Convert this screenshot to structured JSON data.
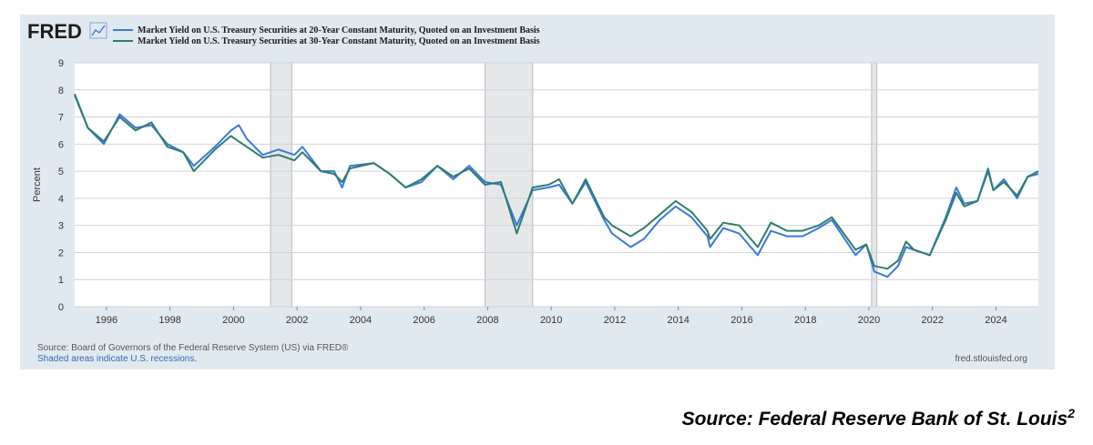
{
  "chart_data": {
    "type": "line",
    "brand": "FRED",
    "ylabel": "Percent",
    "ylim": [
      0,
      9
    ],
    "yticks": [
      "0",
      "1",
      "2",
      "3",
      "4",
      "5",
      "6",
      "7",
      "8",
      "9"
    ],
    "xlim": [
      "1995-01-01",
      "2025-05-01"
    ],
    "xticks": [
      "1996",
      "1998",
      "2000",
      "2002",
      "2004",
      "2006",
      "2008",
      "2010",
      "2012",
      "2014",
      "2016",
      "2018",
      "2020",
      "2022",
      "2024"
    ],
    "grid": true,
    "legend_position": "top-left",
    "recessions": [
      {
        "start": "2001-03-01",
        "end": "2001-11-01"
      },
      {
        "start": "2007-12-01",
        "end": "2009-06-01"
      },
      {
        "start": "2020-02-01",
        "end": "2020-04-01"
      }
    ],
    "series": [
      {
        "name": "Market Yield on U.S. Treasury Securities at 20-Year Constant Maturity, Quoted on an Investment Basis",
        "color": "#3a78e0",
        "points": [
          [
            "1995-01",
            7.8
          ],
          [
            "1995-06",
            6.6
          ],
          [
            "1995-12",
            6.0
          ],
          [
            "1996-06",
            7.1
          ],
          [
            "1996-12",
            6.6
          ],
          [
            "1997-06",
            6.7
          ],
          [
            "1997-12",
            6.0
          ],
          [
            "1998-06",
            5.7
          ],
          [
            "1998-10",
            5.2
          ],
          [
            "1999-06",
            5.9
          ],
          [
            "1999-12",
            6.5
          ],
          [
            "2000-03",
            6.7
          ],
          [
            "2000-06",
            6.2
          ],
          [
            "2000-12",
            5.6
          ],
          [
            "2001-06",
            5.8
          ],
          [
            "2001-12",
            5.6
          ],
          [
            "2002-03",
            5.9
          ],
          [
            "2002-10",
            5.0
          ],
          [
            "2003-03",
            5.0
          ],
          [
            "2003-06",
            4.4
          ],
          [
            "2003-09",
            5.2
          ],
          [
            "2004-06",
            5.3
          ],
          [
            "2004-12",
            4.9
          ],
          [
            "2005-06",
            4.4
          ],
          [
            "2005-12",
            4.6
          ],
          [
            "2006-06",
            5.2
          ],
          [
            "2006-12",
            4.7
          ],
          [
            "2007-06",
            5.2
          ],
          [
            "2007-12",
            4.6
          ],
          [
            "2008-06",
            4.5
          ],
          [
            "2008-12",
            3.0
          ],
          [
            "2009-06",
            4.3
          ],
          [
            "2009-12",
            4.4
          ],
          [
            "2010-04",
            4.5
          ],
          [
            "2010-09",
            3.8
          ],
          [
            "2011-02",
            4.6
          ],
          [
            "2011-09",
            3.2
          ],
          [
            "2011-12",
            2.7
          ],
          [
            "2012-07",
            2.2
          ],
          [
            "2012-12",
            2.5
          ],
          [
            "2013-06",
            3.2
          ],
          [
            "2013-12",
            3.7
          ],
          [
            "2014-06",
            3.3
          ],
          [
            "2014-12",
            2.6
          ],
          [
            "2015-01",
            2.2
          ],
          [
            "2015-06",
            2.9
          ],
          [
            "2015-12",
            2.7
          ],
          [
            "2016-07",
            1.9
          ],
          [
            "2016-12",
            2.8
          ],
          [
            "2017-06",
            2.6
          ],
          [
            "2017-12",
            2.6
          ],
          [
            "2018-06",
            2.9
          ],
          [
            "2018-11",
            3.2
          ],
          [
            "2019-08",
            1.9
          ],
          [
            "2019-12",
            2.3
          ],
          [
            "2020-03",
            1.3
          ],
          [
            "2020-08",
            1.1
          ],
          [
            "2020-12",
            1.5
          ],
          [
            "2021-03",
            2.2
          ],
          [
            "2021-06",
            2.1
          ],
          [
            "2021-12",
            1.9
          ],
          [
            "2022-06",
            3.3
          ],
          [
            "2022-10",
            4.4
          ],
          [
            "2023-01",
            3.8
          ],
          [
            "2023-06",
            3.9
          ],
          [
            "2023-10",
            5.1
          ],
          [
            "2023-12",
            4.3
          ],
          [
            "2024-04",
            4.7
          ],
          [
            "2024-09",
            4.0
          ],
          [
            "2025-01",
            4.8
          ],
          [
            "2025-05",
            4.9
          ]
        ]
      },
      {
        "name": "Market Yield on U.S. Treasury Securities at 30-Year Constant Maturity, Quoted on an Investment Basis",
        "color": "#2e7d6b",
        "points": [
          [
            "1995-01",
            7.85
          ],
          [
            "1995-06",
            6.6
          ],
          [
            "1995-12",
            6.1
          ],
          [
            "1996-06",
            7.0
          ],
          [
            "1996-12",
            6.5
          ],
          [
            "1997-06",
            6.8
          ],
          [
            "1997-12",
            5.9
          ],
          [
            "1998-06",
            5.7
          ],
          [
            "1998-10",
            5.0
          ],
          [
            "1999-06",
            5.8
          ],
          [
            "1999-12",
            6.3
          ],
          [
            "2000-03",
            6.1
          ],
          [
            "2000-06",
            5.9
          ],
          [
            "2000-12",
            5.5
          ],
          [
            "2001-06",
            5.6
          ],
          [
            "2001-12",
            5.4
          ],
          [
            "2002-03",
            5.7
          ],
          [
            "2002-10",
            5.0
          ],
          [
            "2003-03",
            4.9
          ],
          [
            "2003-06",
            4.6
          ],
          [
            "2003-09",
            5.1
          ],
          [
            "2004-06",
            5.3
          ],
          [
            "2004-12",
            4.9
          ],
          [
            "2005-06",
            4.4
          ],
          [
            "2005-12",
            4.7
          ],
          [
            "2006-06",
            5.2
          ],
          [
            "2006-12",
            4.8
          ],
          [
            "2007-06",
            5.1
          ],
          [
            "2007-12",
            4.5
          ],
          [
            "2008-06",
            4.6
          ],
          [
            "2008-12",
            2.7
          ],
          [
            "2009-06",
            4.4
          ],
          [
            "2009-12",
            4.5
          ],
          [
            "2010-04",
            4.7
          ],
          [
            "2010-09",
            3.8
          ],
          [
            "2011-02",
            4.7
          ],
          [
            "2011-09",
            3.3
          ],
          [
            "2011-12",
            3.0
          ],
          [
            "2012-07",
            2.6
          ],
          [
            "2012-12",
            2.9
          ],
          [
            "2013-06",
            3.4
          ],
          [
            "2013-12",
            3.9
          ],
          [
            "2014-06",
            3.5
          ],
          [
            "2014-12",
            2.8
          ],
          [
            "2015-01",
            2.5
          ],
          [
            "2015-06",
            3.1
          ],
          [
            "2015-12",
            3.0
          ],
          [
            "2016-07",
            2.2
          ],
          [
            "2016-12",
            3.1
          ],
          [
            "2017-06",
            2.8
          ],
          [
            "2017-12",
            2.8
          ],
          [
            "2018-06",
            3.0
          ],
          [
            "2018-11",
            3.3
          ],
          [
            "2019-08",
            2.1
          ],
          [
            "2019-12",
            2.3
          ],
          [
            "2020-03",
            1.5
          ],
          [
            "2020-08",
            1.4
          ],
          [
            "2020-12",
            1.7
          ],
          [
            "2021-03",
            2.4
          ],
          [
            "2021-06",
            2.1
          ],
          [
            "2021-12",
            1.9
          ],
          [
            "2022-06",
            3.2
          ],
          [
            "2022-10",
            4.2
          ],
          [
            "2023-01",
            3.7
          ],
          [
            "2023-06",
            3.9
          ],
          [
            "2023-10",
            5.0
          ],
          [
            "2023-12",
            4.3
          ],
          [
            "2024-04",
            4.6
          ],
          [
            "2024-09",
            4.1
          ],
          [
            "2025-01",
            4.8
          ],
          [
            "2025-05",
            5.0
          ]
        ]
      }
    ],
    "footer": {
      "source_line": "Source: Board of Governors of the Federal Reserve System (US) via FRED®",
      "recession_note": "Shaded areas indicate U.S. recessions.",
      "site": "fred.stlouisfed.org"
    }
  },
  "caption": {
    "text": "Source: Federal Reserve Bank of St. Louis",
    "superscript": "2"
  },
  "colors": {
    "panel_bg": "#e1e9f0",
    "plot_bg": "#ffffff",
    "recession_fill": "#e6e7e9",
    "grid": "#cfd4da",
    "logo": "#1d1d1b",
    "link_blue": "#2f6db0"
  }
}
